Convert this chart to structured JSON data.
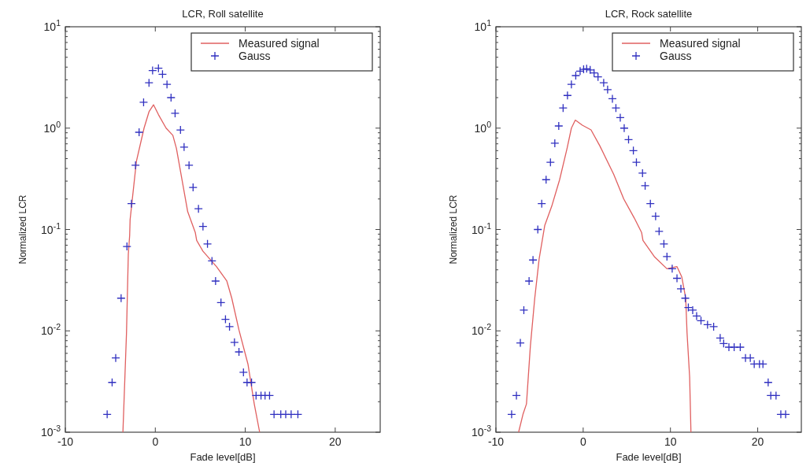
{
  "chart_data": [
    {
      "type": "line",
      "title": "LCR, Roll satellite",
      "xlabel": "Fade level[dB]",
      "ylabel": "Normalized LCR",
      "log": "y",
      "legend": "top right",
      "grid": false,
      "xlim": [
        -10,
        25
      ],
      "xticks": [
        -10,
        0,
        10,
        20
      ],
      "ylim": [
        0.001,
        10
      ],
      "yticks": [
        {
          "value": 0.001,
          "label": "10$^{-3}$"
        },
        {
          "value": 0.01,
          "label": "10$^{-2}$"
        },
        {
          "value": 0.1,
          "label": "10$^{-1}$"
        },
        {
          "value": 1,
          "label": "10$^{0}$"
        },
        {
          "value": 10,
          "label": "10$^{1}$"
        }
      ],
      "series": [
        {
          "name": "Measured signal",
          "type": "line",
          "color": "#e06060",
          "line_style": "solid",
          "x": [
            -3.6,
            -3.2,
            -3.0,
            -2.85,
            -2.8,
            -2.1,
            -1.25,
            -0.7,
            -0.2,
            0.35,
            1.2,
            1.95,
            2.35,
            3.6,
            4.45,
            4.6,
            5.3,
            6.8,
            7.95,
            8.5,
            9.3,
            10.3,
            11.0,
            11.6
          ],
          "values": [
            0.001,
            0.0096,
            0.057,
            0.087,
            0.125,
            0.47,
            1.0,
            1.45,
            1.7,
            1.36,
            1.0,
            0.85,
            0.63,
            0.15,
            0.093,
            0.078,
            0.061,
            0.043,
            0.031,
            0.021,
            0.0102,
            0.0047,
            0.0019,
            0.001
          ]
        },
        {
          "name": "Gauss",
          "type": "scatter",
          "marker": "cross",
          "color": "#3030c0",
          "x": [
            -5.35,
            -4.8,
            -4.4,
            -3.8,
            -3.15,
            -2.65,
            -2.2,
            -1.8,
            -1.3,
            -0.7,
            -0.3,
            0.35,
            0.8,
            1.3,
            1.75,
            2.2,
            2.8,
            3.2,
            3.75,
            4.2,
            4.8,
            5.3,
            5.8,
            6.3,
            6.7,
            7.3,
            7.8,
            8.25,
            8.8,
            9.3,
            9.8,
            10.2,
            10.7,
            11.2,
            11.75,
            12.2,
            12.7,
            13.2,
            13.95,
            14.5,
            15.1,
            15.85
          ],
          "values": [
            0.0015,
            0.0031,
            0.0054,
            0.021,
            0.068,
            0.18,
            0.43,
            0.91,
            1.8,
            2.8,
            3.7,
            3.9,
            3.4,
            2.7,
            2.0,
            1.4,
            0.96,
            0.65,
            0.43,
            0.26,
            0.16,
            0.107,
            0.072,
            0.049,
            0.031,
            0.019,
            0.013,
            0.011,
            0.0077,
            0.0062,
            0.0039,
            0.0031,
            0.0031,
            0.0023,
            0.0023,
            0.0023,
            0.0023,
            0.0015,
            0.0015,
            0.0015,
            0.0015,
            0.0015
          ]
        }
      ]
    },
    {
      "type": "line",
      "title": "LCR, Rock satellite",
      "xlabel": "Fade level[dB]",
      "ylabel": "Normalized LCR",
      "log": "y",
      "legend": "top right",
      "grid": false,
      "xlim": [
        -10,
        25
      ],
      "xticks": [
        -10,
        0,
        10,
        20
      ],
      "ylim": [
        0.001,
        10
      ],
      "yticks": [
        {
          "value": 0.001,
          "label": "10$^{-3}$"
        },
        {
          "value": 0.01,
          "label": "10$^{-2}$"
        },
        {
          "value": 0.1,
          "label": "10$^{-1}$"
        },
        {
          "value": 1,
          "label": "10$^{0}$"
        },
        {
          "value": 10,
          "label": "10$^{1}$"
        }
      ],
      "series": [
        {
          "name": "Measured signal",
          "type": "line",
          "color": "#e06060",
          "line_style": "solid",
          "x": [
            -7.4,
            -6.9,
            -6.5,
            -6.05,
            -5.55,
            -5.05,
            -4.4,
            -3.6,
            -2.7,
            -1.85,
            -1.35,
            -0.9,
            -0.1,
            0.9,
            1.9,
            3.5,
            4.65,
            5.85,
            6.7,
            6.85,
            8.15,
            9.6,
            10.75,
            11.3,
            11.75,
            11.9,
            12.2,
            12.35
          ],
          "values": [
            0.001,
            0.0015,
            0.0019,
            0.0071,
            0.021,
            0.051,
            0.11,
            0.17,
            0.31,
            0.63,
            1.0,
            1.2,
            1.07,
            0.96,
            0.67,
            0.35,
            0.2,
            0.13,
            0.093,
            0.078,
            0.054,
            0.041,
            0.043,
            0.034,
            0.021,
            0.0096,
            0.0035,
            0.001
          ]
        },
        {
          "name": "Gauss",
          "type": "scatter",
          "marker": "cross",
          "color": "#3030c0",
          "x": [
            -8.2,
            -7.65,
            -7.2,
            -6.8,
            -6.2,
            -5.75,
            -5.2,
            -4.75,
            -4.25,
            -3.75,
            -3.25,
            -2.8,
            -2.3,
            -1.8,
            -1.35,
            -0.85,
            -0.35,
            0.05,
            0.4,
            0.8,
            1.25,
            1.7,
            2.35,
            2.8,
            3.35,
            3.75,
            4.25,
            4.7,
            5.2,
            5.75,
            6.1,
            6.8,
            7.1,
            7.7,
            8.3,
            8.7,
            9.25,
            9.6,
            10.2,
            10.75,
            11.2,
            11.7,
            12.05,
            12.55,
            13.0,
            13.5,
            14.25,
            14.95,
            15.7,
            16.1,
            16.7,
            17.3,
            18.0,
            18.6,
            19.15,
            19.6,
            20.2,
            20.6,
            21.2,
            21.5,
            22.1,
            22.65,
            23.2
          ],
          "values": [
            0.0015,
            0.0023,
            0.0076,
            0.016,
            0.031,
            0.05,
            0.1,
            0.18,
            0.31,
            0.46,
            0.71,
            1.05,
            1.58,
            2.1,
            2.7,
            3.3,
            3.65,
            3.8,
            3.85,
            3.75,
            3.5,
            3.2,
            2.8,
            2.4,
            1.95,
            1.58,
            1.27,
            1.0,
            0.77,
            0.6,
            0.46,
            0.36,
            0.27,
            0.18,
            0.135,
            0.096,
            0.072,
            0.054,
            0.041,
            0.033,
            0.026,
            0.021,
            0.017,
            0.016,
            0.014,
            0.0126,
            0.0115,
            0.011,
            0.0085,
            0.0075,
            0.0069,
            0.0069,
            0.0069,
            0.0054,
            0.0054,
            0.0047,
            0.0047,
            0.0047,
            0.0031,
            0.0023,
            0.0023,
            0.0015,
            0.0015
          ]
        }
      ]
    }
  ]
}
